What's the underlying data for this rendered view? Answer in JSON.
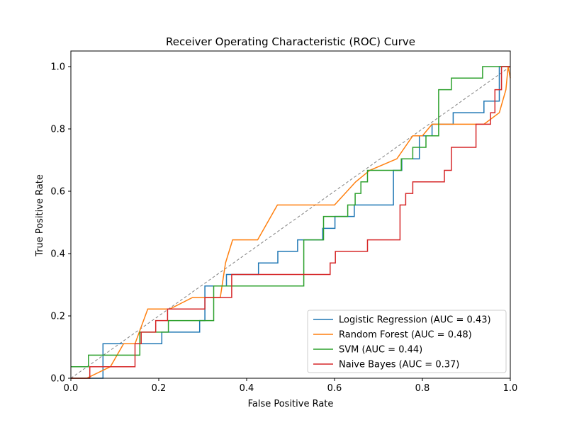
{
  "chart_data": {
    "type": "line",
    "title": "Receiver Operating Characteristic (ROC) Curve",
    "xlabel": "False Positive Rate",
    "ylabel": "True Positive Rate",
    "xlim": [
      0.0,
      1.0
    ],
    "ylim": [
      0.0,
      1.05
    ],
    "xticks": [
      "0.0",
      "0.2",
      "0.4",
      "0.6",
      "0.8",
      "1.0"
    ],
    "yticks": [
      "0.0",
      "0.2",
      "0.4",
      "0.6",
      "0.8",
      "1.0"
    ],
    "grid": false,
    "legend_position": "lower-right",
    "chance_line": {
      "x": [
        0,
        1
      ],
      "y": [
        0,
        1
      ],
      "color": "#808080",
      "style": "dashed"
    },
    "series": [
      {
        "name": "Logistic Regression (AUC = 0.43)",
        "color": "#1f77b4",
        "x": [
          0,
          0.073,
          0.073,
          0.122,
          0.122,
          0.207,
          0.207,
          0.293,
          0.293,
          0.305,
          0.305,
          0.354,
          0.354,
          0.427,
          0.427,
          0.471,
          0.471,
          0.516,
          0.516,
          0.573,
          0.573,
          0.601,
          0.601,
          0.645,
          0.645,
          0.734,
          0.734,
          0.753,
          0.753,
          0.793,
          0.793,
          0.822,
          0.822,
          0.87,
          0.87,
          0.94,
          0.94,
          0.975,
          0.975,
          1.0
        ],
        "y": [
          0,
          0,
          0.111,
          0.111,
          0.111,
          0.111,
          0.148,
          0.148,
          0.185,
          0.185,
          0.296,
          0.296,
          0.333,
          0.333,
          0.37,
          0.37,
          0.407,
          0.407,
          0.444,
          0.444,
          0.481,
          0.481,
          0.519,
          0.519,
          0.556,
          0.556,
          0.667,
          0.667,
          0.704,
          0.704,
          0.778,
          0.778,
          0.815,
          0.815,
          0.852,
          0.852,
          0.889,
          0.889,
          1.0,
          1.0
        ]
      },
      {
        "name": "Random Forest (AUC = 0.48)",
        "color": "#ff7f0e",
        "x": [
          0,
          0.036,
          0.09,
          0.12,
          0.146,
          0.175,
          0.225,
          0.277,
          0.305,
          0.34,
          0.352,
          0.368,
          0.425,
          0.47,
          0.6,
          0.648,
          0.68,
          0.742,
          0.778,
          0.79,
          0.8,
          0.822,
          0.84,
          0.94,
          0.975,
          0.99,
          0.995,
          1.0
        ],
        "y": [
          0,
          0.0,
          0.037,
          0.111,
          0.111,
          0.222,
          0.222,
          0.259,
          0.259,
          0.259,
          0.37,
          0.444,
          0.444,
          0.556,
          0.556,
          0.63,
          0.667,
          0.704,
          0.778,
          0.778,
          0.778,
          0.815,
          0.815,
          0.815,
          0.852,
          0.926,
          1.0,
          0.963
        ]
      },
      {
        "name": "SVM (AUC = 0.44)",
        "color": "#2ca02c",
        "x": [
          0,
          0.04,
          0.04,
          0.157,
          0.157,
          0.222,
          0.222,
          0.325,
          0.325,
          0.53,
          0.53,
          0.575,
          0.575,
          0.63,
          0.63,
          0.647,
          0.647,
          0.66,
          0.66,
          0.675,
          0.675,
          0.752,
          0.752,
          0.778,
          0.778,
          0.808,
          0.808,
          0.837,
          0.837,
          0.866,
          0.866,
          0.937,
          0.937,
          1.0
        ],
        "y": [
          0.037,
          0.037,
          0.074,
          0.074,
          0.148,
          0.148,
          0.185,
          0.185,
          0.296,
          0.296,
          0.444,
          0.444,
          0.519,
          0.519,
          0.556,
          0.556,
          0.593,
          0.593,
          0.63,
          0.63,
          0.667,
          0.667,
          0.704,
          0.704,
          0.741,
          0.741,
          0.778,
          0.778,
          0.926,
          0.926,
          0.963,
          0.963,
          1.0,
          1.0
        ]
      },
      {
        "name": "Naive Bayes (AUC = 0.37)",
        "color": "#d62728",
        "x": [
          0,
          0.043,
          0.043,
          0.146,
          0.146,
          0.16,
          0.16,
          0.193,
          0.193,
          0.22,
          0.22,
          0.305,
          0.305,
          0.366,
          0.366,
          0.59,
          0.59,
          0.602,
          0.602,
          0.675,
          0.675,
          0.749,
          0.749,
          0.762,
          0.762,
          0.778,
          0.778,
          0.85,
          0.85,
          0.866,
          0.866,
          0.922,
          0.922,
          0.955,
          0.955,
          0.965,
          0.965,
          0.98,
          0.98,
          1.0
        ],
        "y": [
          0,
          0,
          0.037,
          0.037,
          0.111,
          0.111,
          0.148,
          0.148,
          0.185,
          0.185,
          0.222,
          0.222,
          0.259,
          0.259,
          0.333,
          0.333,
          0.37,
          0.37,
          0.407,
          0.407,
          0.444,
          0.444,
          0.556,
          0.556,
          0.593,
          0.593,
          0.63,
          0.63,
          0.667,
          0.667,
          0.741,
          0.741,
          0.815,
          0.815,
          0.852,
          0.852,
          0.926,
          0.926,
          1.0,
          1.0
        ]
      }
    ]
  }
}
